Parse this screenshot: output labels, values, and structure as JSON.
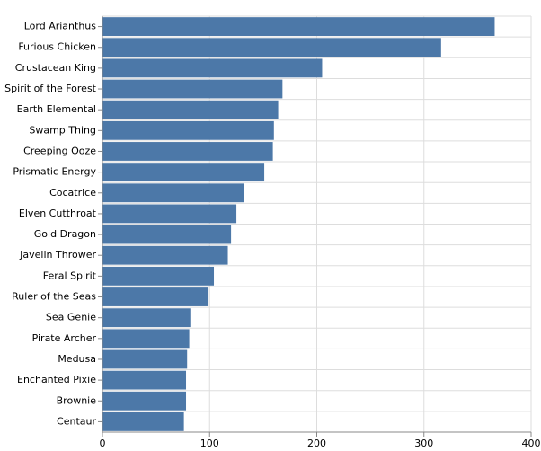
{
  "chart_data": {
    "type": "bar",
    "orientation": "horizontal",
    "categories": [
      "Lord Arianthus",
      "Furious Chicken",
      "Crustacean King",
      "Spirit of the Forest",
      "Earth Elemental",
      "Swamp Thing",
      "Creeping Ooze",
      "Prismatic Energy",
      "Cocatrice",
      "Elven Cutthroat",
      "Gold Dragon",
      "Javelin Thrower",
      "Feral Spirit",
      "Ruler of the Seas",
      "Sea Genie",
      "Pirate Archer",
      "Medusa",
      "Enchanted Pixie",
      "Brownie",
      "Centaur"
    ],
    "values": [
      366,
      316,
      205,
      168,
      164,
      160,
      159,
      151,
      132,
      125,
      120,
      117,
      104,
      99,
      82,
      81,
      79,
      78,
      78,
      76
    ],
    "color": "#4c78a8",
    "xlim": [
      0,
      400
    ],
    "xticks": [
      0,
      100,
      200,
      300,
      400
    ],
    "grid": true
  }
}
